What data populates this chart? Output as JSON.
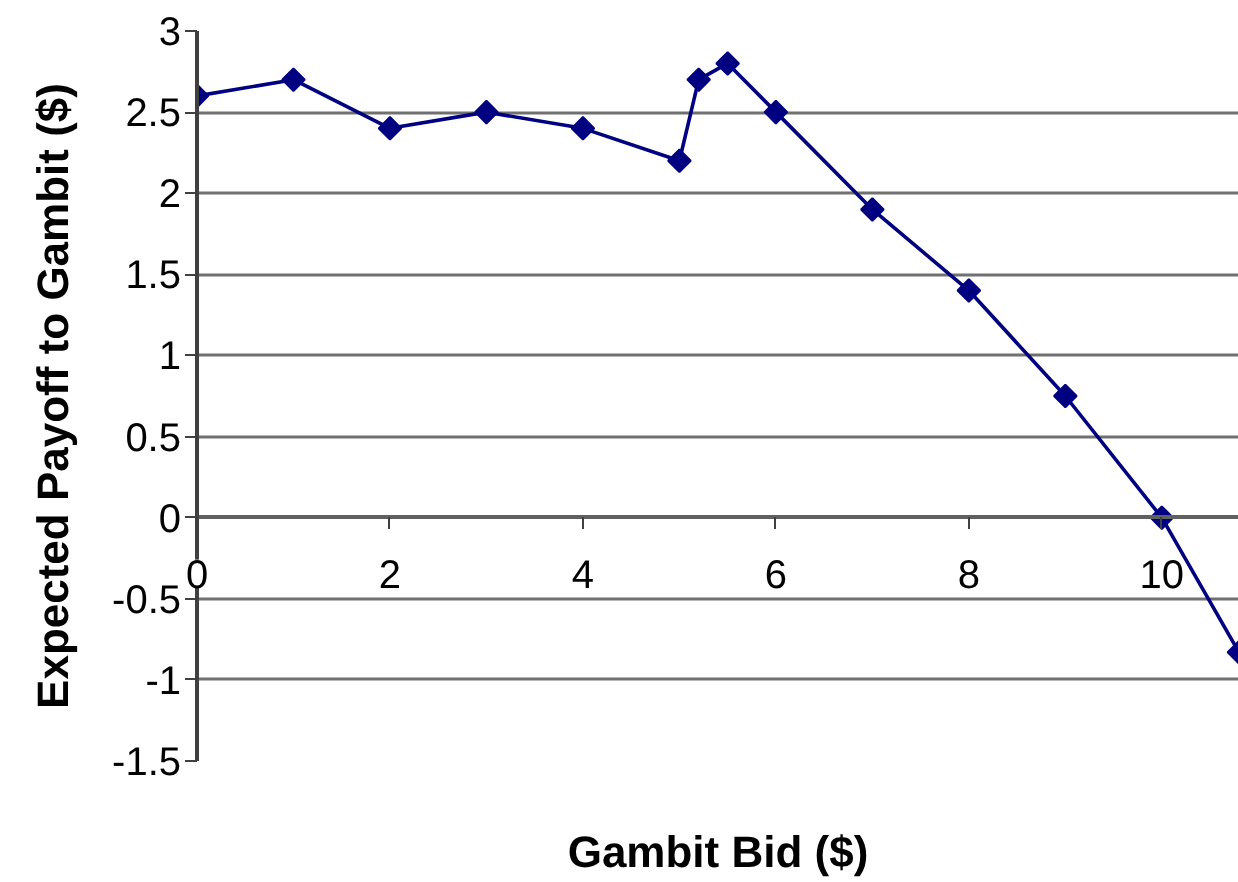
{
  "chart_data": {
    "type": "line",
    "xlabel": "Gambit Bid ($)",
    "ylabel": "Expected Payoff to Gambit ($)",
    "x": [
      0,
      1,
      2,
      3,
      4,
      5,
      5.2,
      5.5,
      6,
      7,
      8,
      9,
      10,
      10.8
    ],
    "series": [
      {
        "color": "#000080",
        "values": [
          2.6,
          2.7,
          2.4,
          2.5,
          2.4,
          2.2,
          2.7,
          2.8,
          2.5,
          1.9,
          1.4,
          0.75,
          0,
          -0.83
        ]
      }
    ],
    "xlim": [
      0,
      10.8
    ],
    "ylim": [
      -1.5,
      3
    ],
    "xticks": [
      0,
      2,
      4,
      6,
      8,
      10
    ],
    "yticks": [
      3,
      2.5,
      2,
      1.5,
      1,
      0.5,
      0,
      -0.5,
      -1,
      -1.5
    ],
    "grid": "y",
    "marker": "diamond",
    "line_style": "solid"
  }
}
